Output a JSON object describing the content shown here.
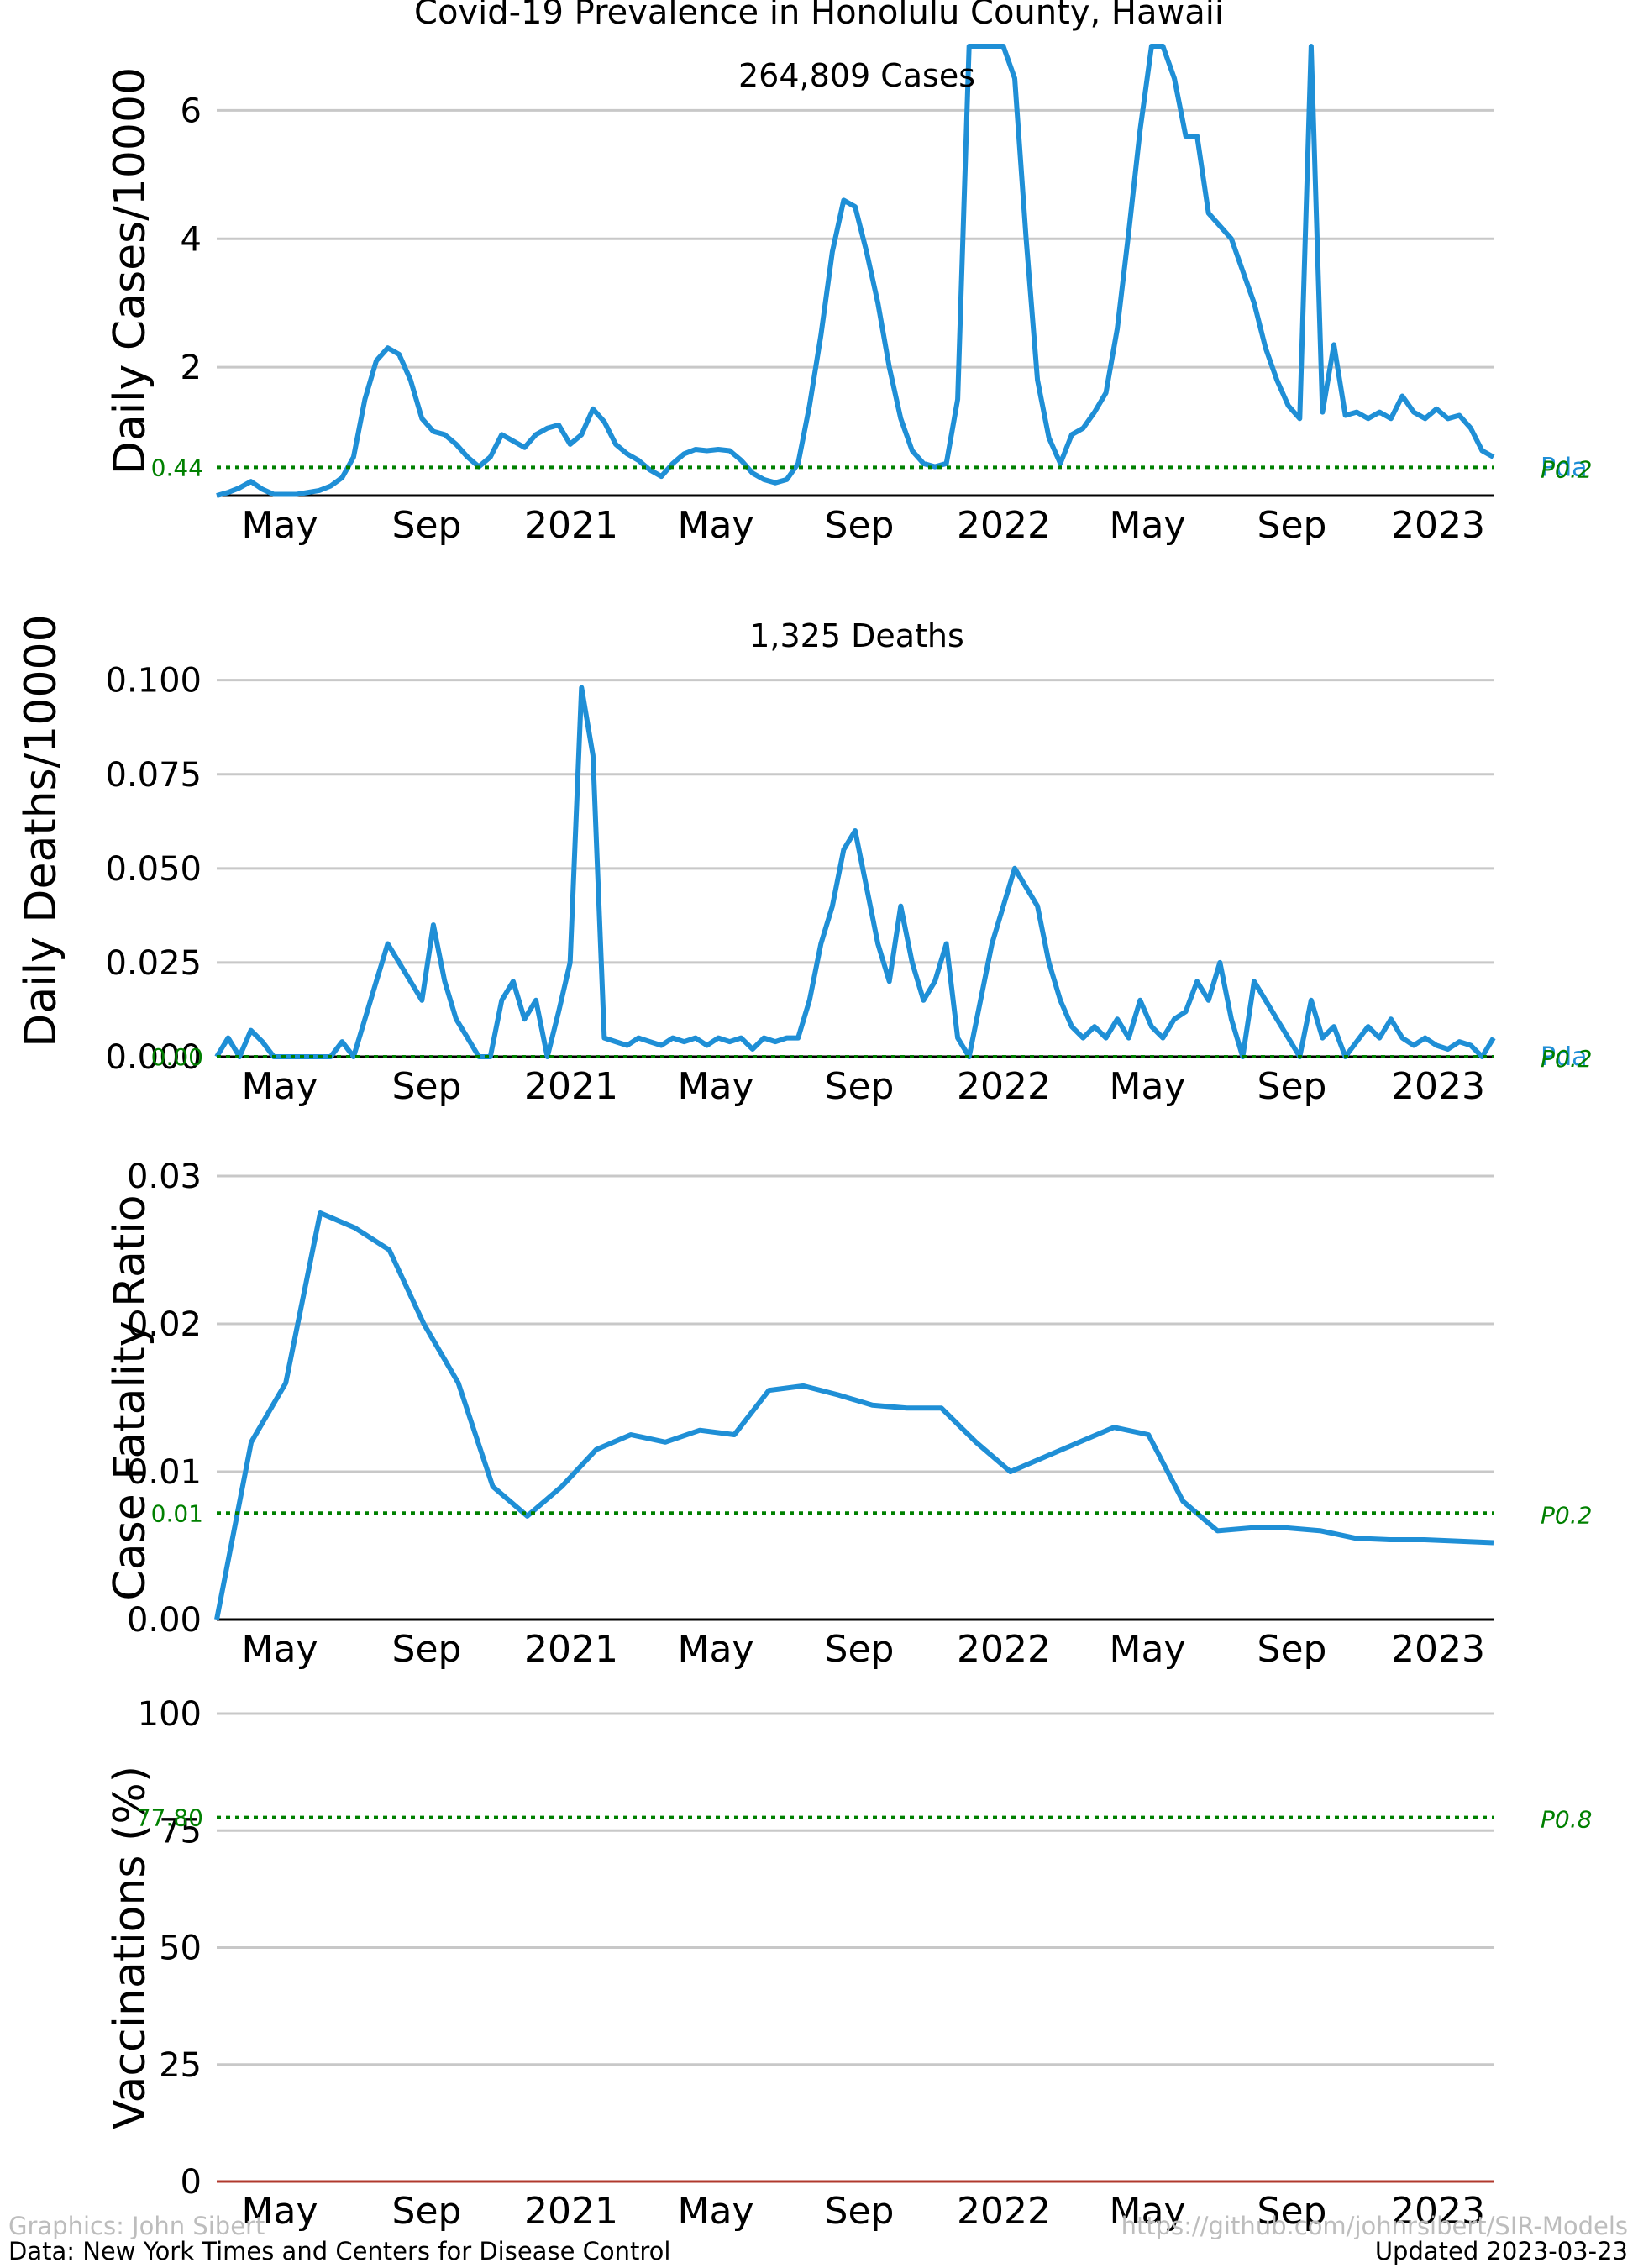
{
  "figure": {
    "title": "Covid-19 Prevalence in Honolulu County, Hawaii",
    "accent_color": "#1f8fd6",
    "reference_color": "#008000",
    "grid_color": "#c8c8c8"
  },
  "footer": {
    "graphics_credit": "Graphics: John Sibert",
    "data_credit": "Data: New York Times and Centers for Disease Control",
    "source_url": "https://github.com/johnrsibert/SIR-Models",
    "updated": "Updated 2023-03-23"
  },
  "x_ticks": [
    "May",
    "Sep",
    "2021",
    "May",
    "Sep",
    "2022",
    "May",
    "Sep",
    "2023"
  ],
  "chart_data": [
    {
      "id": "cases",
      "type": "line",
      "ylabel": "Daily Cases/10000",
      "ylim": [
        0,
        7
      ],
      "yticks": [
        "2",
        "4",
        "6"
      ],
      "annotation": "264,809 Cases",
      "reference": {
        "value": 0.44,
        "label": "0.44",
        "tag_a": "P0.2",
        "tag_b": "Pda"
      },
      "grid": true,
      "series": [
        {
          "values": [
            0.0,
            0.05,
            0.12,
            0.22,
            0.1,
            0.02,
            0.02,
            0.02,
            0.05,
            0.08,
            0.15,
            0.28,
            0.6,
            1.5,
            2.1,
            2.3,
            2.2,
            1.8,
            1.2,
            1.0,
            0.95,
            0.8,
            0.6,
            0.45,
            0.6,
            0.95,
            0.85,
            0.75,
            0.95,
            1.05,
            1.1,
            0.8,
            0.95,
            1.35,
            1.15,
            0.8,
            0.65,
            0.55,
            0.4,
            0.3,
            0.5,
            0.65,
            0.72,
            0.7,
            0.72,
            0.7,
            0.55,
            0.35,
            0.25,
            0.2,
            0.25,
            0.5,
            1.4,
            2.5,
            3.8,
            4.6,
            4.5,
            3.8,
            3.0,
            2.0,
            1.2,
            0.7,
            0.5,
            0.45,
            0.5,
            1.5,
            7.0,
            7.0,
            7.0,
            7.0,
            6.5,
            4.0,
            1.8,
            0.9,
            0.5,
            0.95,
            1.05,
            1.3,
            1.6,
            2.6,
            4.1,
            5.7,
            7.0,
            7.0,
            6.5,
            5.6,
            5.6,
            4.4,
            4.2,
            4.0,
            3.5,
            3.0,
            2.3,
            1.8,
            1.4,
            1.2,
            7.0,
            1.3,
            2.35,
            1.25,
            1.3,
            1.2,
            1.3,
            1.2,
            1.55,
            1.3,
            1.2,
            1.35,
            1.2,
            1.25,
            1.05,
            0.7,
            0.6
          ]
        }
      ]
    },
    {
      "id": "deaths",
      "type": "line",
      "ylabel": "Daily Deaths/10000",
      "ylim": [
        0,
        0.12
      ],
      "yticks": [
        "0.000",
        "0.025",
        "0.050",
        "0.075",
        "0.100"
      ],
      "annotation": "1,325 Deaths",
      "reference": {
        "value": 0.0,
        "label": "0.00",
        "tag_a": "P0.2",
        "tag_b": "Pda"
      },
      "grid": true,
      "series": [
        {
          "values": [
            0.0,
            0.005,
            0.0,
            0.007,
            0.004,
            0.0,
            0.0,
            0.0,
            0.0,
            0.0,
            0.0,
            0.004,
            0.0,
            0.01,
            0.02,
            0.03,
            0.025,
            0.02,
            0.015,
            0.035,
            0.02,
            0.01,
            0.005,
            0.0,
            0.0,
            0.015,
            0.02,
            0.01,
            0.015,
            0.0,
            0.012,
            0.025,
            0.098,
            0.08,
            0.005,
            0.004,
            0.003,
            0.005,
            0.004,
            0.003,
            0.005,
            0.004,
            0.005,
            0.003,
            0.005,
            0.004,
            0.005,
            0.002,
            0.005,
            0.004,
            0.005,
            0.005,
            0.015,
            0.03,
            0.04,
            0.055,
            0.06,
            0.045,
            0.03,
            0.02,
            0.04,
            0.025,
            0.015,
            0.02,
            0.03,
            0.005,
            0.0,
            0.015,
            0.03,
            0.04,
            0.05,
            0.045,
            0.04,
            0.025,
            0.015,
            0.008,
            0.005,
            0.008,
            0.005,
            0.01,
            0.005,
            0.015,
            0.008,
            0.005,
            0.01,
            0.012,
            0.02,
            0.015,
            0.025,
            0.01,
            0.0,
            0.02,
            0.015,
            0.01,
            0.005,
            0.0,
            0.015,
            0.005,
            0.008,
            0.0,
            0.004,
            0.008,
            0.005,
            0.01,
            0.005,
            0.003,
            0.005,
            0.003,
            0.002,
            0.004,
            0.003,
            0.0,
            0.005
          ]
        }
      ]
    },
    {
      "id": "cfr",
      "type": "line",
      "ylabel": "Case Fatality Ratio",
      "ylim": [
        0,
        0.03
      ],
      "yticks": [
        "0.00",
        "0.01",
        "0.02",
        "0.03"
      ],
      "reference": {
        "value": 0.0072,
        "label": "0.01",
        "tag_a": "P0.2"
      },
      "grid": true,
      "series": [
        {
          "values": [
            0.0,
            0.012,
            0.016,
            0.0275,
            0.0265,
            0.025,
            0.02,
            0.016,
            0.009,
            0.007,
            0.009,
            0.0115,
            0.0125,
            0.012,
            0.0128,
            0.0125,
            0.0155,
            0.0158,
            0.0152,
            0.0145,
            0.0143,
            0.0143,
            0.012,
            0.01,
            0.011,
            0.012,
            0.013,
            0.0125,
            0.008,
            0.006,
            0.0062,
            0.0062,
            0.006,
            0.0055,
            0.0054,
            0.0054,
            0.0053,
            0.0052
          ]
        }
      ]
    },
    {
      "id": "vaccinations",
      "type": "line",
      "ylabel": "Vaccinations (%)",
      "ylim": [
        0,
        100
      ],
      "yticks": [
        "0",
        "25",
        "50",
        "75",
        "100"
      ],
      "reference": {
        "value": 77.8,
        "label": "77.80",
        "tag_a": "P0.8"
      },
      "grid": true,
      "series": [
        {
          "values": [
            0,
            0
          ]
        }
      ]
    }
  ]
}
